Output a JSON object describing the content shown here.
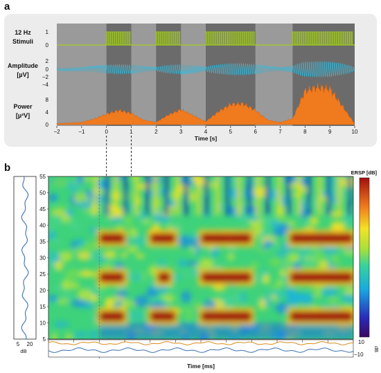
{
  "panels": {
    "a": "a",
    "b": "b"
  },
  "colors": {
    "stim_fill": "#a4cf1e",
    "amp_fill": "#36b6d6",
    "power_fill": "#f07a1e",
    "plot_bg_dark": "#6b6b6b",
    "plot_bg_light": "#9a9a9a",
    "panel_a_bg": "#ececec",
    "ersp_trace": "#d88a1c",
    "itc_trace": "#3a6fb0",
    "marker_trace": "#c24fb8"
  },
  "chart_data": [
    {
      "type": "area",
      "panel": "a",
      "xlabel": "Time [s]",
      "xlim": [
        -2,
        10
      ],
      "xticks": [
        -2,
        -1,
        0,
        1,
        2,
        3,
        4,
        5,
        6,
        7,
        8,
        9,
        10
      ],
      "stimulus_on_intervals": [
        [
          0,
          1
        ],
        [
          2,
          3
        ],
        [
          4,
          6
        ],
        [
          7.5,
          10
        ]
      ],
      "rows": [
        {
          "label_line1": "12 Hz",
          "label_line2": "Stimuli",
          "yticks": [
            "1",
            "0"
          ]
        },
        {
          "label_line1": "Amplitude",
          "label_line2": "[µV]",
          "yticks": [
            "2",
            "0",
            "−2",
            "−4"
          ]
        },
        {
          "label_line1": "Power",
          "label_line2": "[µ²V]",
          "yticks": [
            "8",
            "4",
            "0"
          ]
        }
      ],
      "power_envelope": {
        "x": [
          -2,
          -1,
          -0.5,
          0,
          0.5,
          1,
          1.5,
          2,
          2.5,
          3,
          3.5,
          4,
          4.5,
          5,
          5.5,
          6,
          6.5,
          7,
          7.5,
          8,
          8.5,
          9,
          9.5,
          10
        ],
        "y": [
          0.3,
          0.6,
          1.5,
          2.8,
          3.8,
          3.0,
          1.2,
          0.6,
          2.6,
          4.0,
          2.4,
          0.8,
          3.4,
          5.4,
          5.6,
          3.8,
          1.2,
          0.6,
          1.6,
          9.0,
          10.0,
          9.6,
          5.0,
          0.2
        ],
        "ylim": [
          0,
          10
        ]
      }
    },
    {
      "type": "heatmap",
      "panel": "b",
      "xlabel": "Time [ms]",
      "colorbar_title": "ERSP [dB]",
      "ylim": [
        5,
        55
      ],
      "yticks": [
        "55",
        "50",
        "45",
        "40",
        "35",
        "30",
        "25",
        "20",
        "15",
        "10",
        "5"
      ],
      "bottom_axis_ticks": [
        "10",
        "−10"
      ],
      "bottom_axis_unit": "dB",
      "side_xticks": [
        "5",
        "20"
      ],
      "side_xlabel": "dB",
      "high_power_bands": [
        {
          "freq": 36,
          "t": [
            0,
            1
          ]
        },
        {
          "freq": 36,
          "t": [
            2,
            3
          ]
        },
        {
          "freq": 36,
          "t": [
            4,
            6
          ]
        },
        {
          "freq": 36,
          "t": [
            7.5,
            10
          ]
        },
        {
          "freq": 24,
          "t": [
            0,
            1
          ]
        },
        {
          "freq": 24,
          "t": [
            2.3,
            2.8
          ]
        },
        {
          "freq": 24,
          "t": [
            4,
            6
          ]
        },
        {
          "freq": 24,
          "t": [
            7.5,
            10
          ]
        },
        {
          "freq": 12,
          "t": [
            0,
            1
          ]
        },
        {
          "freq": 12,
          "t": [
            2,
            3
          ]
        },
        {
          "freq": 12,
          "t": [
            4,
            6
          ]
        },
        {
          "freq": 12,
          "t": [
            7.5,
            10
          ]
        }
      ]
    }
  ]
}
